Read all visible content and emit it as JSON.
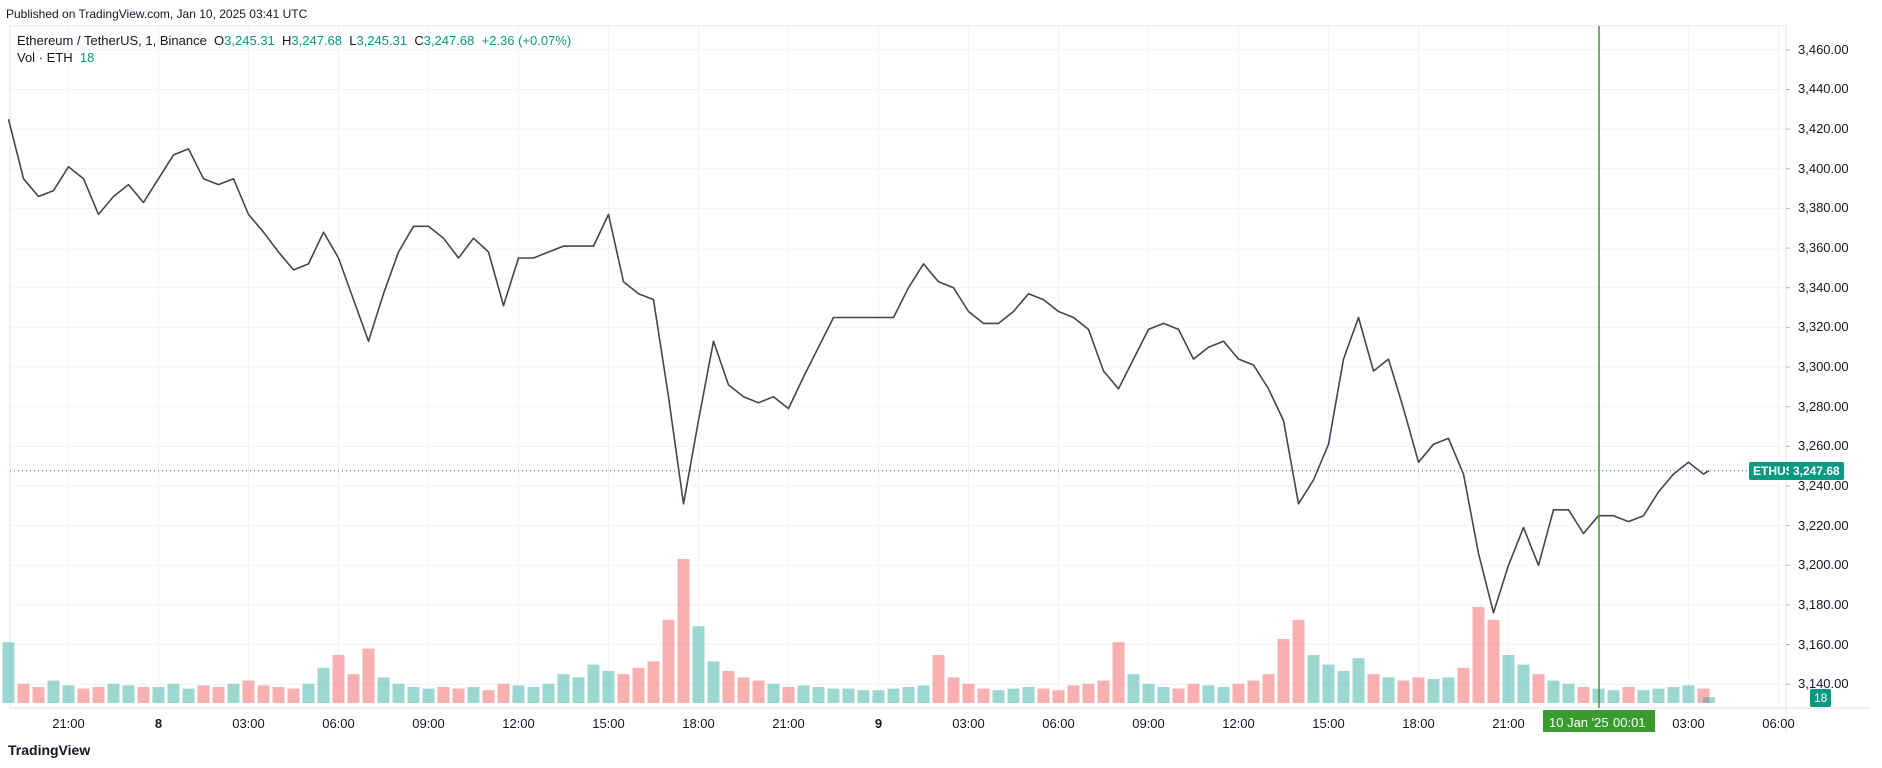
{
  "header": {
    "published": "Published on TradingView.com, Jan 10, 2025 03:41 UTC",
    "logo": "TradingView"
  },
  "legend": {
    "symbol": "Ethereum / TetherUS, 1, Binance",
    "o_label": "O",
    "o": "3,245.31",
    "h_label": "H",
    "h": "3,247.68",
    "l_label": "L",
    "l": "3,245.31",
    "c_label": "C",
    "c": "3,247.68",
    "change": "+2.36 (+0.07%)",
    "vol_label": "Vol · ETH",
    "vol": "18"
  },
  "chart_data": {
    "type": "line",
    "color": "#434651",
    "up_color": "#26a69a",
    "down_color": "#ef5350",
    "xlim": [
      "2025-01-07T19:03",
      "2025-01-10T06:15"
    ],
    "ylim": [
      3128,
      3470
    ],
    "yticks": [
      {
        "value": 3140,
        "label": "3,140.00"
      },
      {
        "value": 3160,
        "label": "3,160.00"
      },
      {
        "value": 3180,
        "label": "3,180.00"
      },
      {
        "value": 3200,
        "label": "3,200.00"
      },
      {
        "value": 3220,
        "label": "3,220.00"
      },
      {
        "value": 3240,
        "label": "3,240.00"
      },
      {
        "value": 3260,
        "label": "3,260.00"
      },
      {
        "value": 3280,
        "label": "3,280.00"
      },
      {
        "value": 3300,
        "label": "3,300.00"
      },
      {
        "value": 3320,
        "label": "3,320.00"
      },
      {
        "value": 3340,
        "label": "3,340.00"
      },
      {
        "value": 3360,
        "label": "3,360.00"
      },
      {
        "value": 3380,
        "label": "3,380.00"
      },
      {
        "value": 3400,
        "label": "3,400.00"
      },
      {
        "value": 3420,
        "label": "3,420.00"
      },
      {
        "value": 3440,
        "label": "3,440.00"
      },
      {
        "value": 3460,
        "label": "3,460.00"
      }
    ],
    "xticks": [
      {
        "value": "2025-01-07T21:00",
        "label": "21:00"
      },
      {
        "value": "2025-01-08T00:00",
        "label": "8"
      },
      {
        "value": "2025-01-08T03:00",
        "label": "03:00"
      },
      {
        "value": "2025-01-08T06:00",
        "label": "06:00"
      },
      {
        "value": "2025-01-08T09:00",
        "label": "09:00"
      },
      {
        "value": "2025-01-08T12:00",
        "label": "12:00"
      },
      {
        "value": "2025-01-08T15:00",
        "label": "15:00"
      },
      {
        "value": "2025-01-08T18:00",
        "label": "18:00"
      },
      {
        "value": "2025-01-08T21:00",
        "label": "21:00"
      },
      {
        "value": "2025-01-09T00:00",
        "label": "9"
      },
      {
        "value": "2025-01-09T03:00",
        "label": "03:00"
      },
      {
        "value": "2025-01-09T06:00",
        "label": "06:00"
      },
      {
        "value": "2025-01-09T09:00",
        "label": "09:00"
      },
      {
        "value": "2025-01-09T12:00",
        "label": "12:00"
      },
      {
        "value": "2025-01-09T15:00",
        "label": "15:00"
      },
      {
        "value": "2025-01-09T18:00",
        "label": "18:00"
      },
      {
        "value": "2025-01-09T21:00",
        "label": "21:00"
      },
      {
        "value": "2025-01-10T03:00",
        "label": "03:00"
      },
      {
        "value": "2025-01-10T06:00",
        "label": "06:00"
      }
    ],
    "grid": true,
    "x": [
      "2025-01-07T19:00",
      "2025-01-07T19:30",
      "2025-01-07T20:00",
      "2025-01-07T20:30",
      "2025-01-07T21:00",
      "2025-01-07T21:30",
      "2025-01-07T22:00",
      "2025-01-07T22:30",
      "2025-01-07T23:00",
      "2025-01-07T23:30",
      "2025-01-08T00:00",
      "2025-01-08T00:30",
      "2025-01-08T01:00",
      "2025-01-08T01:30",
      "2025-01-08T02:00",
      "2025-01-08T02:30",
      "2025-01-08T03:00",
      "2025-01-08T03:30",
      "2025-01-08T04:00",
      "2025-01-08T04:30",
      "2025-01-08T05:00",
      "2025-01-08T05:30",
      "2025-01-08T06:00",
      "2025-01-08T06:30",
      "2025-01-08T07:00",
      "2025-01-08T07:30",
      "2025-01-08T08:00",
      "2025-01-08T08:30",
      "2025-01-08T09:00",
      "2025-01-08T09:30",
      "2025-01-08T10:00",
      "2025-01-08T10:30",
      "2025-01-08T11:00",
      "2025-01-08T11:30",
      "2025-01-08T12:00",
      "2025-01-08T12:30",
      "2025-01-08T13:00",
      "2025-01-08T13:30",
      "2025-01-08T14:00",
      "2025-01-08T14:30",
      "2025-01-08T15:00",
      "2025-01-08T15:30",
      "2025-01-08T16:00",
      "2025-01-08T16:30",
      "2025-01-08T17:00",
      "2025-01-08T17:30",
      "2025-01-08T18:00",
      "2025-01-08T18:30",
      "2025-01-08T19:00",
      "2025-01-08T19:30",
      "2025-01-08T20:00",
      "2025-01-08T20:30",
      "2025-01-08T21:00",
      "2025-01-08T21:30",
      "2025-01-08T22:00",
      "2025-01-08T22:30",
      "2025-01-08T23:00",
      "2025-01-08T23:30",
      "2025-01-09T00:00",
      "2025-01-09T00:30",
      "2025-01-09T01:00",
      "2025-01-09T01:30",
      "2025-01-09T02:00",
      "2025-01-09T02:30",
      "2025-01-09T03:00",
      "2025-01-09T03:30",
      "2025-01-09T04:00",
      "2025-01-09T04:30",
      "2025-01-09T05:00",
      "2025-01-09T05:30",
      "2025-01-09T06:00",
      "2025-01-09T06:30",
      "2025-01-09T07:00",
      "2025-01-09T07:30",
      "2025-01-09T08:00",
      "2025-01-09T08:30",
      "2025-01-09T09:00",
      "2025-01-09T09:30",
      "2025-01-09T10:00",
      "2025-01-09T10:30",
      "2025-01-09T11:00",
      "2025-01-09T11:30",
      "2025-01-09T12:00",
      "2025-01-09T12:30",
      "2025-01-09T13:00",
      "2025-01-09T13:30",
      "2025-01-09T14:00",
      "2025-01-09T14:30",
      "2025-01-09T15:00",
      "2025-01-09T15:30",
      "2025-01-09T16:00",
      "2025-01-09T16:30",
      "2025-01-09T17:00",
      "2025-01-09T17:30",
      "2025-01-09T18:00",
      "2025-01-09T18:30",
      "2025-01-09T19:00",
      "2025-01-09T19:30",
      "2025-01-09T20:00",
      "2025-01-09T20:30",
      "2025-01-09T21:00",
      "2025-01-09T21:30",
      "2025-01-09T22:00",
      "2025-01-09T22:30",
      "2025-01-09T23:00",
      "2025-01-09T23:30",
      "2025-01-10T00:00",
      "2025-01-10T00:30",
      "2025-01-10T01:00",
      "2025-01-10T01:30",
      "2025-01-10T02:00",
      "2025-01-10T02:30",
      "2025-01-10T03:00",
      "2025-01-10T03:30",
      "2025-01-10T03:41"
    ],
    "values": [
      3425,
      3395,
      3386,
      3389,
      3401,
      3395,
      3377,
      3386,
      3392,
      3383,
      3395,
      3407,
      3410,
      3395,
      3392,
      3395,
      3377,
      3368,
      3358,
      3349,
      3352,
      3368,
      3355,
      3334,
      3313,
      3337,
      3358,
      3371,
      3371,
      3365,
      3355,
      3365,
      3358,
      3331,
      3355,
      3355,
      3358,
      3361,
      3361,
      3361,
      3377,
      3343,
      3337,
      3334,
      3285,
      3231,
      3273,
      3313,
      3291,
      3285,
      3282,
      3285,
      3279,
      3295,
      3310,
      3325,
      3325,
      3325,
      3325,
      3325,
      3340,
      3352,
      3343,
      3340,
      3328,
      3322,
      3322,
      3328,
      3337,
      3334,
      3328,
      3325,
      3319,
      3298,
      3289,
      3304,
      3319,
      3322,
      3319,
      3304,
      3310,
      3313,
      3304,
      3301,
      3289,
      3273,
      3231,
      3243,
      3261,
      3304,
      3325,
      3298,
      3304,
      3279,
      3252,
      3261,
      3264,
      3246,
      3206,
      3176,
      3200,
      3219,
      3200,
      3228,
      3228,
      3216,
      3225,
      3225,
      3222,
      3225,
      3237,
      3246,
      3252,
      3246,
      3247.68
    ],
    "volume": [
      190,
      60,
      50,
      70,
      55,
      45,
      50,
      60,
      55,
      50,
      50,
      60,
      45,
      55,
      50,
      60,
      70,
      55,
      50,
      45,
      60,
      110,
      150,
      90,
      170,
      80,
      60,
      50,
      45,
      50,
      45,
      50,
      40,
      60,
      55,
      50,
      60,
      90,
      80,
      120,
      100,
      90,
      110,
      130,
      260,
      450,
      240,
      130,
      100,
      80,
      70,
      60,
      50,
      55,
      50,
      45,
      45,
      40,
      40,
      45,
      50,
      55,
      150,
      80,
      60,
      45,
      40,
      45,
      50,
      45,
      40,
      55,
      60,
      70,
      190,
      90,
      60,
      50,
      45,
      60,
      55,
      50,
      60,
      70,
      90,
      200,
      260,
      150,
      120,
      100,
      140,
      90,
      80,
      70,
      80,
      75,
      80,
      110,
      300,
      260,
      150,
      120,
      90,
      70,
      60,
      50,
      45,
      40,
      50,
      40,
      45,
      50,
      55,
      45,
      18
    ],
    "volume_lim": [
      0,
      500
    ],
    "last_price": {
      "value": 3247.68,
      "symbol": "ETHUSDT",
      "label": "3,247.68"
    },
    "crosshair": {
      "value": "2025-01-10T00:01",
      "date_label": "10 Jan '25",
      "time_label": "00:01"
    }
  }
}
